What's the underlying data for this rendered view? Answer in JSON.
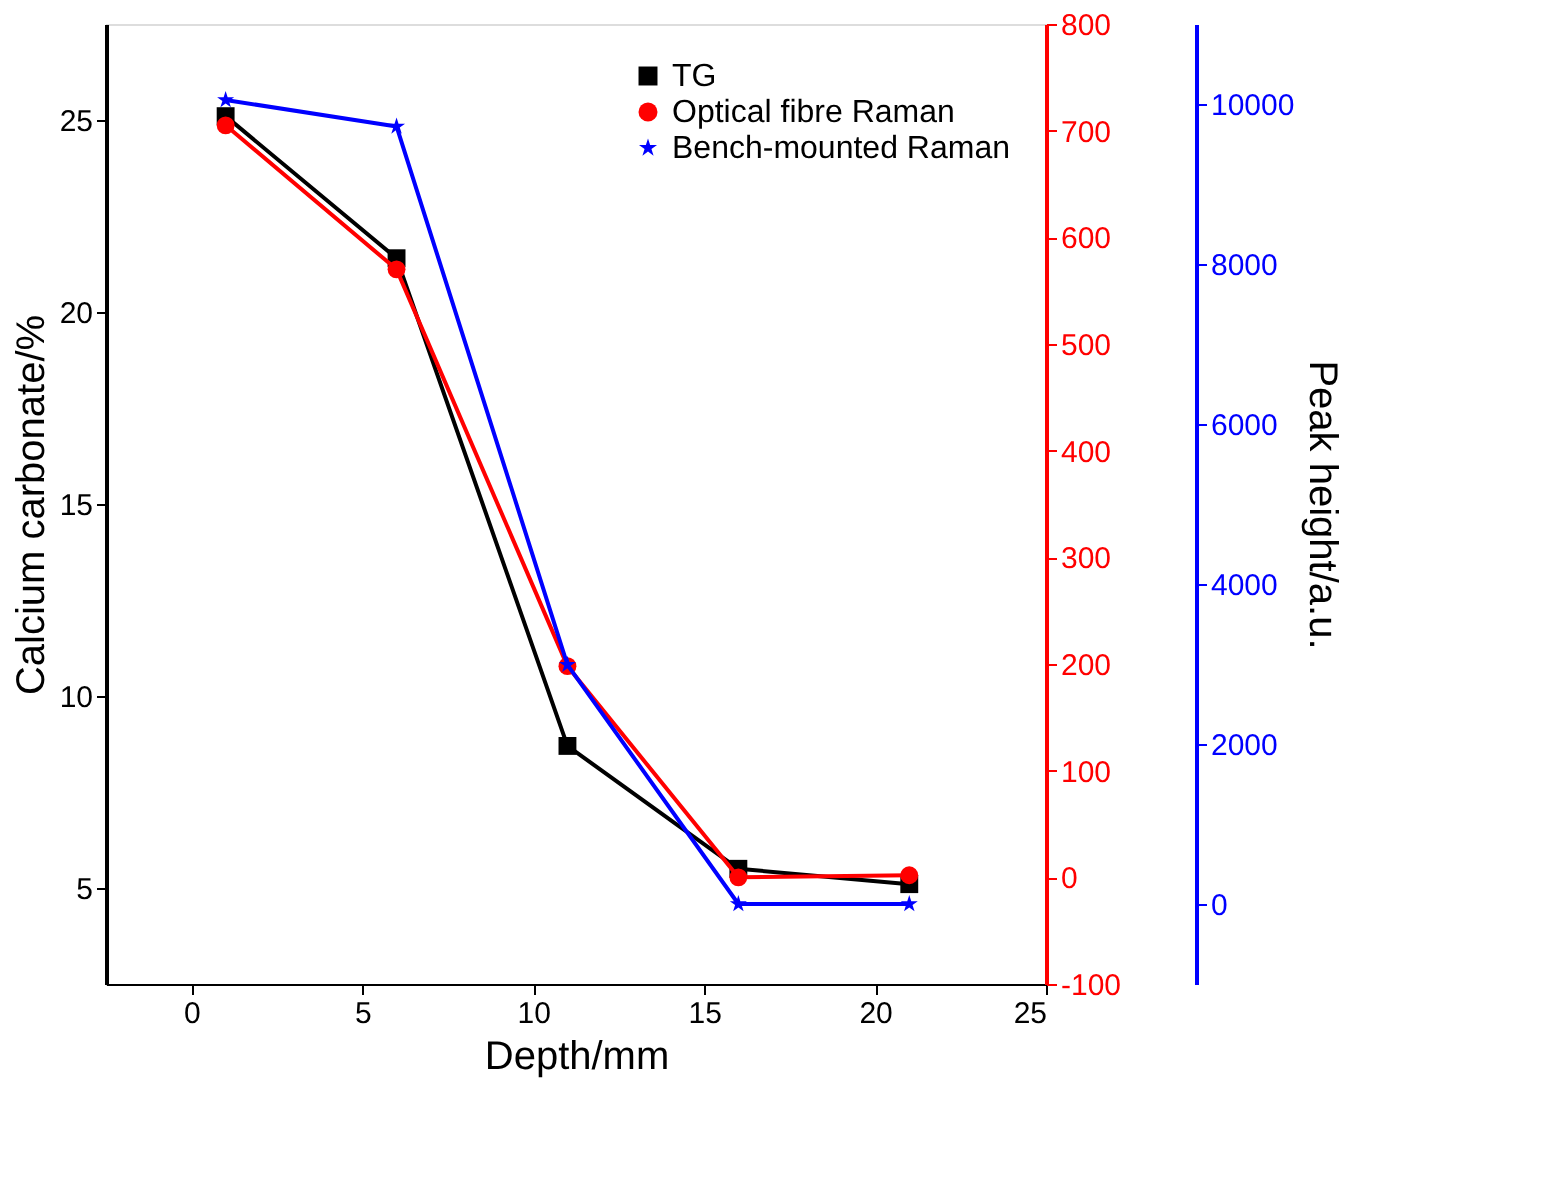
{
  "chart_data": {
    "type": "line",
    "xlabel": "Depth/mm",
    "ylabel": "Calcium carbonate/%",
    "y3label": "Peak height/a.u.",
    "x": [
      1,
      6,
      11,
      16,
      21
    ],
    "xlim": [
      -2.5,
      25
    ],
    "xticks": [
      0,
      5,
      10,
      15,
      20,
      25
    ],
    "ylim": [
      2.5,
      27.5
    ],
    "yticks": [
      5,
      10,
      15,
      20,
      25
    ],
    "y2lim": [
      -100,
      800
    ],
    "y2ticks": [
      -100,
      0,
      100,
      200,
      300,
      400,
      500,
      600,
      700,
      800
    ],
    "y3lim": [
      -1000,
      11000
    ],
    "y3ticks": [
      0,
      2000,
      4000,
      6000,
      8000,
      10000
    ],
    "legend": "top right",
    "grid": false,
    "line_style": "solid",
    "series": [
      {
        "name": "TG",
        "color": "#000000",
        "marker": "square",
        "values": [
          25.1,
          21.4,
          8.7,
          5.5,
          5.1
        ]
      },
      {
        "name": "Optical fibre Raman",
        "color": "#ff0000",
        "marker": "circle",
        "axis": "y2",
        "values": [
          705,
          570,
          198,
          0,
          2
        ]
      },
      {
        "name": "Bench-mounted Raman",
        "color": "#0000ff",
        "marker": "star",
        "axis": "y3",
        "values": [
          10050,
          9720,
          2990,
          0,
          0
        ]
      }
    ]
  }
}
